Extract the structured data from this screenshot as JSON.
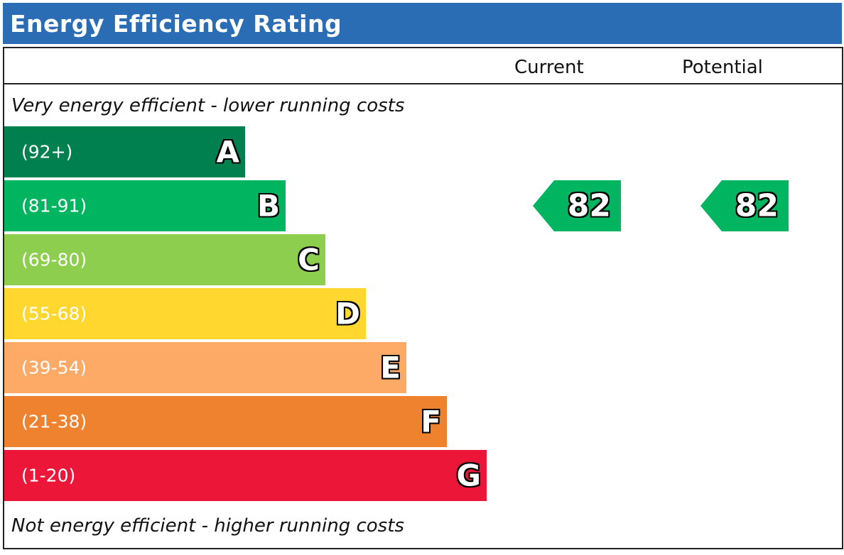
{
  "title": "Energy Efficiency Rating",
  "columns": {
    "current": "Current",
    "potential": "Potential"
  },
  "top_caption": "Very energy efficient - lower running costs",
  "bottom_caption": "Not energy efficient - higher running costs",
  "chart_data": {
    "type": "bar",
    "bands": [
      {
        "letter": "A",
        "range": "(92+)",
        "color": "#007f4f"
      },
      {
        "letter": "B",
        "range": "(81-91)",
        "color": "#00b460"
      },
      {
        "letter": "C",
        "range": "(69-80)",
        "color": "#8dce4f"
      },
      {
        "letter": "D",
        "range": "(55-68)",
        "color": "#ffd72f"
      },
      {
        "letter": "E",
        "range": "(39-54)",
        "color": "#fdaa67"
      },
      {
        "letter": "F",
        "range": "(21-38)",
        "color": "#ef822f"
      },
      {
        "letter": "G",
        "range": "(1-20)",
        "color": "#ec1639"
      }
    ],
    "current": {
      "value": "82",
      "band": "B",
      "color": "#00b460"
    },
    "potential": {
      "value": "82",
      "band": "B",
      "color": "#00b460"
    }
  }
}
